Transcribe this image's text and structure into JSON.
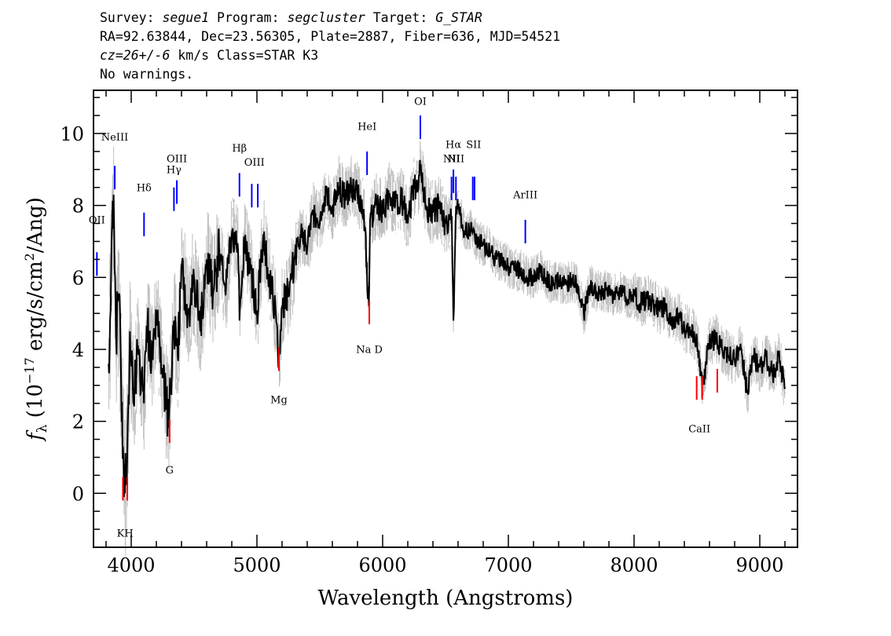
{
  "header": {
    "line1": {
      "survey_label": "Survey: ",
      "survey": "segue1",
      "program_label": " Program: ",
      "program": "segcluster",
      "target_label": " Target: ",
      "target": "G_STAR"
    },
    "line2": "RA=92.63844, Dec=23.56305, Plate=2887, Fiber=636, MJD=54521",
    "line3": {
      "cz": "cz=26+/-6",
      "rest": " km/s Class=STAR K3"
    },
    "line4": "No warnings."
  },
  "chart_data": {
    "type": "line",
    "xlabel": "Wavelength (Angstroms)",
    "ylabel": "f_λ (10^-17 erg/s/cm^2/Ang)",
    "ylabel_parts": {
      "f": "f",
      "sub": "λ",
      "mid1": " (10",
      "sup1": "−17",
      "mid2": " erg/s/cm",
      "sup2": "2",
      "end": "/Ang)"
    },
    "xlim": [
      3700,
      9300
    ],
    "ylim": [
      -1.5,
      11.2
    ],
    "xticks": [
      4000,
      5000,
      6000,
      7000,
      8000,
      9000
    ],
    "yticks": [
      0,
      2,
      4,
      6,
      8,
      10
    ],
    "series": [
      {
        "role": "error band",
        "color": "#c0c0c0"
      },
      {
        "role": "flux",
        "color": "#000000",
        "x": [
          3820,
          3840,
          3860,
          3880,
          3900,
          3920,
          3935,
          3950,
          3968,
          3990,
          4020,
          4050,
          4080,
          4101,
          4130,
          4160,
          4200,
          4250,
          4300,
          4340,
          4370,
          4400,
          4450,
          4500,
          4550,
          4600,
          4650,
          4700,
          4750,
          4800,
          4850,
          4861,
          4900,
          4950,
          5000,
          5050,
          5100,
          5150,
          5175,
          5200,
          5250,
          5300,
          5350,
          5400,
          5450,
          5500,
          5550,
          5600,
          5650,
          5700,
          5750,
          5800,
          5850,
          5890,
          5900,
          5950,
          6000,
          6050,
          6100,
          6150,
          6200,
          6250,
          6280,
          6300,
          6350,
          6400,
          6450,
          6500,
          6550,
          6563,
          6580,
          6600,
          6650,
          6700,
          6750,
          6800,
          6850,
          6900,
          6950,
          7000,
          7050,
          7100,
          7150,
          7200,
          7250,
          7300,
          7350,
          7400,
          7450,
          7500,
          7550,
          7600,
          7650,
          7700,
          7750,
          7800,
          7850,
          7900,
          7950,
          8000,
          8050,
          8100,
          8150,
          8200,
          8250,
          8300,
          8350,
          8400,
          8450,
          8500,
          8542,
          8600,
          8650,
          8700,
          8750,
          8800,
          8850,
          8900,
          8950,
          9000,
          9050,
          9100,
          9150,
          9200
        ],
        "y": [
          3.6,
          6.0,
          8.3,
          4.2,
          5.5,
          3.0,
          1.3,
          0.0,
          1.0,
          4.5,
          2.5,
          4.0,
          3.2,
          2.5,
          4.8,
          3.5,
          5.0,
          3.2,
          2.0,
          4.8,
          3.8,
          6.3,
          5.0,
          6.0,
          4.5,
          6.5,
          5.5,
          6.8,
          5.5,
          7.2,
          6.8,
          4.8,
          7.0,
          6.2,
          5.0,
          7.2,
          6.0,
          5.0,
          3.8,
          5.2,
          5.5,
          6.5,
          7.2,
          6.8,
          7.8,
          7.5,
          8.4,
          7.8,
          8.5,
          8.2,
          8.5,
          8.3,
          7.9,
          5.2,
          7.6,
          8.0,
          7.8,
          8.3,
          8.0,
          8.2,
          7.5,
          8.5,
          8.4,
          9.0,
          7.9,
          7.8,
          8.0,
          7.5,
          7.7,
          4.8,
          7.5,
          7.9,
          7.3,
          7.3,
          7.0,
          6.9,
          6.8,
          6.5,
          6.5,
          6.3,
          6.2,
          6.2,
          6.0,
          6.0,
          6.2,
          6.0,
          5.8,
          5.9,
          5.8,
          5.9,
          5.8,
          5.0,
          5.8,
          5.6,
          5.6,
          5.6,
          5.5,
          5.6,
          5.4,
          5.5,
          5.3,
          5.4,
          5.3,
          5.1,
          5.2,
          4.8,
          4.9,
          4.6,
          4.5,
          4.3,
          3.0,
          4.2,
          4.3,
          4.0,
          3.8,
          3.7,
          4.0,
          2.8,
          3.8,
          3.5,
          3.8,
          3.3,
          3.8,
          2.9
        ]
      }
    ],
    "annotations": {
      "emission": [
        {
          "label": "OII",
          "x": 3727,
          "y": 6.7
        },
        {
          "label": "NeIII",
          "x": 3869,
          "y": 9.1
        },
        {
          "label": "Hδ",
          "x": 4102,
          "y": 7.8
        },
        {
          "label": "Hγ",
          "x": 4340,
          "y": 8.5
        },
        {
          "label": "OIII",
          "x": 4363,
          "y": 8.7
        },
        {
          "label": "Hβ",
          "x": 4861,
          "y": 8.9
        },
        {
          "label": "OIII",
          "x": 4959,
          "y": 8.6
        },
        {
          "label": "OIII",
          "x": 5007,
          "y": 8.6
        },
        {
          "label": "HeI",
          "x": 5876,
          "y": 9.5
        },
        {
          "label": "OI",
          "x": 6300,
          "y": 10.5
        },
        {
          "label": "NII",
          "x": 6548,
          "y": 8.8
        },
        {
          "label": "Hα",
          "x": 6563,
          "y": 9.0
        },
        {
          "label": "NII",
          "x": 6583,
          "y": 8.8
        },
        {
          "label": "SII",
          "x": 6717,
          "y": 8.8
        },
        {
          "label": "SII",
          "x": 6731,
          "y": 8.8
        },
        {
          "label": "ArIII",
          "x": 7135,
          "y": 7.6
        }
      ],
      "emission_labels": [
        {
          "label": "OII",
          "x": 3727,
          "y": 7.5
        },
        {
          "label": "NeIII",
          "x": 3869,
          "y": 9.8
        },
        {
          "label": "Hδ",
          "x": 4102,
          "y": 8.4
        },
        {
          "label": "Hγ",
          "x": 4340,
          "y": 8.9
        },
        {
          "label": "OIII",
          "x": 4363,
          "y": 9.2
        },
        {
          "label": "Hβ",
          "x": 4861,
          "y": 9.5
        },
        {
          "label": "OIII",
          "x": 4980,
          "y": 9.1
        },
        {
          "label": "HeI",
          "x": 5876,
          "y": 10.1
        },
        {
          "label": "OI",
          "x": 6300,
          "y": 10.8
        },
        {
          "label": "NII",
          "x": 6548,
          "y": 9.2
        },
        {
          "label": "Hα",
          "x": 6563,
          "y": 9.6
        },
        {
          "label": "SII",
          "x": 6724,
          "y": 9.6
        },
        {
          "label": "NII",
          "x": 6583,
          "y": 9.2
        },
        {
          "label": "ArIII",
          "x": 7135,
          "y": 8.2
        }
      ],
      "absorption": [
        {
          "label": "K",
          "x": 3934,
          "y": -0.2
        },
        {
          "label": "H",
          "x": 3969,
          "y": -0.2
        },
        {
          "label": "G",
          "x": 4305,
          "y": 1.4
        },
        {
          "label": "Mg",
          "x": 5175,
          "y": 3.4
        },
        {
          "label": "Na D",
          "x": 5894,
          "y": 4.7
        },
        {
          "label": "CaII",
          "x": 8498,
          "y": 2.6
        },
        {
          "label": "CaII",
          "x": 8542,
          "y": 2.6
        },
        {
          "label": "CaII",
          "x": 8662,
          "y": 2.8
        }
      ],
      "absorption_labels": [
        {
          "label": "KH",
          "x": 3951,
          "y": -1.2
        },
        {
          "label": "G",
          "x": 4305,
          "y": 0.55
        },
        {
          "label": "Mg",
          "x": 5175,
          "y": 2.5
        },
        {
          "label": "Na D",
          "x": 5894,
          "y": 3.9
        },
        {
          "label": "CaII",
          "x": 8520,
          "y": 1.7
        }
      ],
      "emission_color": "#0000ff",
      "absorption_color": "#ff0000"
    }
  }
}
